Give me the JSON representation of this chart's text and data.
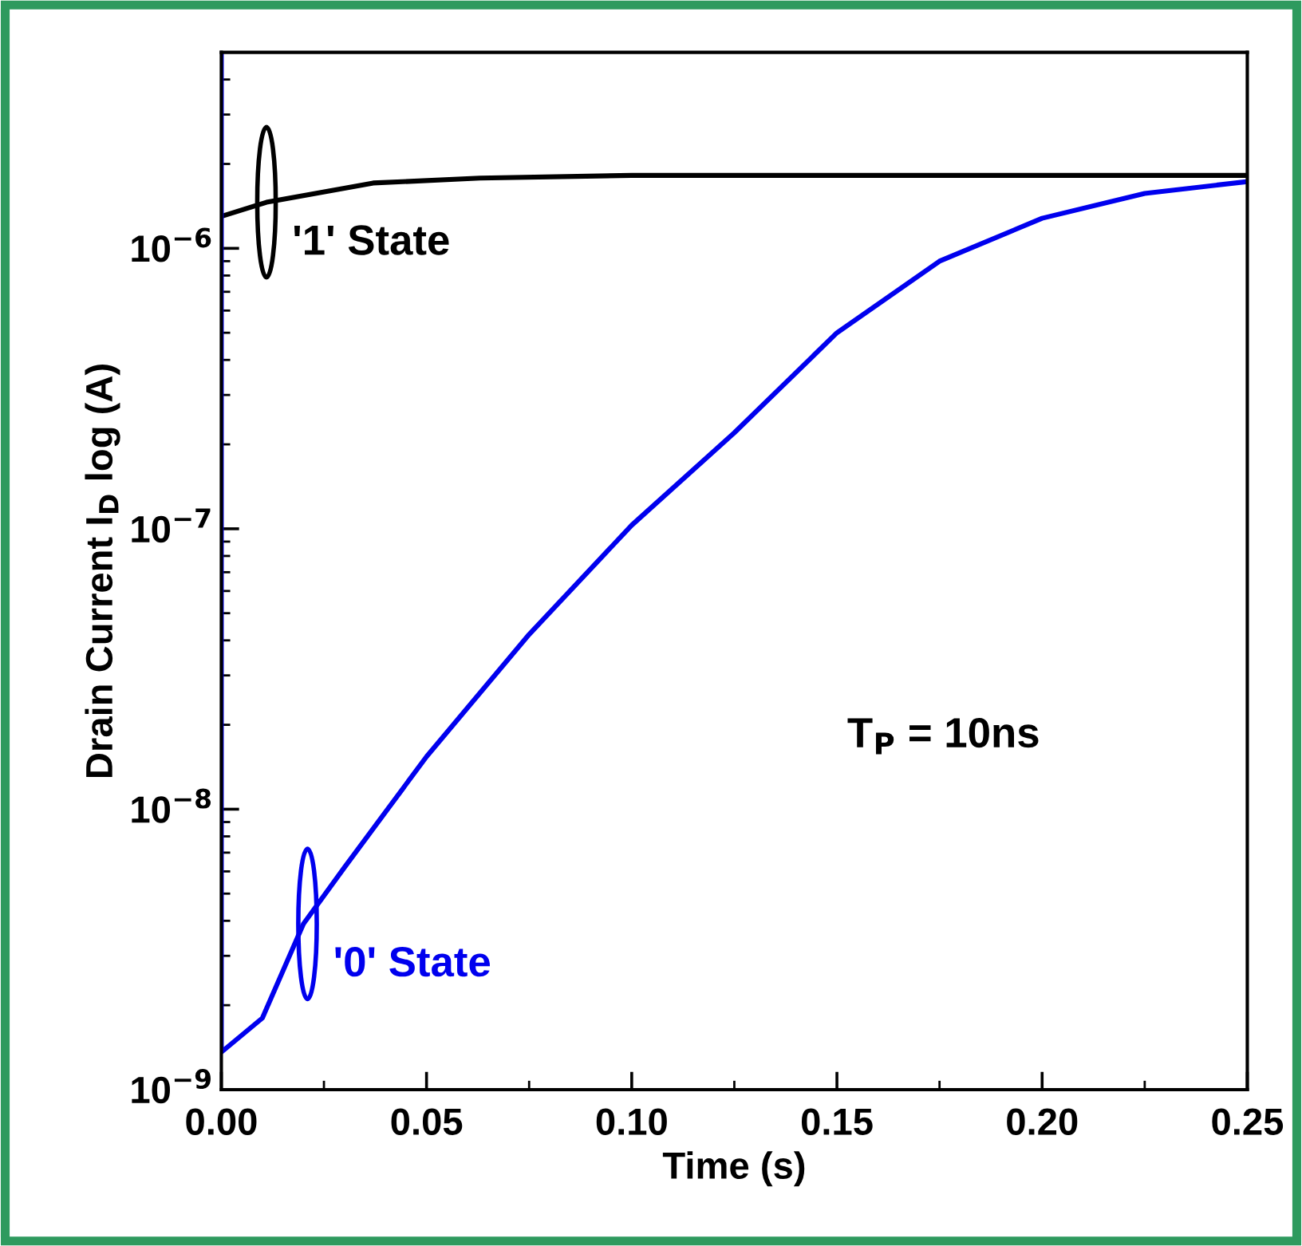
{
  "chart_data": {
    "type": "line",
    "xlabel": "Time (s)",
    "ylabel": "Drain Current I$_{D}$ log (A)",
    "log": "y",
    "xlim": [
      0,
      0.25
    ],
    "xticks": [
      {
        "value": 0,
        "label": "0.00"
      },
      {
        "value": 0.05,
        "label": "0.05"
      },
      {
        "value": 0.1,
        "label": "0.10"
      },
      {
        "value": 0.15,
        "label": "0.15"
      },
      {
        "value": 0.2,
        "label": "0.20"
      },
      {
        "value": 0.25,
        "label": "0.25"
      }
    ],
    "ylim": [
      1e-09,
      5e-06
    ],
    "yticks": [
      {
        "value": 1e-09,
        "label": "10$^{−9}$"
      },
      {
        "value": 1e-08,
        "label": "10$^{−8}$"
      },
      {
        "value": 1e-07,
        "label": "10$^{−7}$"
      },
      {
        "value": 1e-06,
        "label": "10$^{−6}$"
      }
    ],
    "marker": "none",
    "line_style": "solid",
    "series": [
      {
        "color": "#000000",
        "x": [
          0,
          0.011,
          0.037,
          0.063,
          0.1,
          0.15,
          0.2,
          0.25
        ],
        "values": [
          1.3e-06,
          1.46e-06,
          1.71e-06,
          1.78e-06,
          1.82e-06,
          1.82e-06,
          1.82e-06,
          1.82e-06
        ]
      },
      {
        "color": "#0000ee",
        "x": [
          0,
          0,
          0.01,
          0.02,
          0.03,
          0.05,
          0.075,
          0.1,
          0.125,
          0.15,
          0.175,
          0.2,
          0.225,
          0.25
        ],
        "values": [
          5e-06,
          1.36e-09,
          1.8e-09,
          3.9e-09,
          6.2e-09,
          1.54e-08,
          4.2e-08,
          1.03e-07,
          2.2e-07,
          5e-07,
          9e-07,
          1.28e-06,
          1.57e-06,
          1.73e-06
        ]
      }
    ],
    "annotations": [
      {
        "text": "'1' State",
        "x": 0.011,
        "y": 1.46e-06
      },
      {
        "text": "'0' State",
        "x": 0.021,
        "y": 3.9e-09
      },
      "T$_{P}$ = 10ns"
    ]
  }
}
